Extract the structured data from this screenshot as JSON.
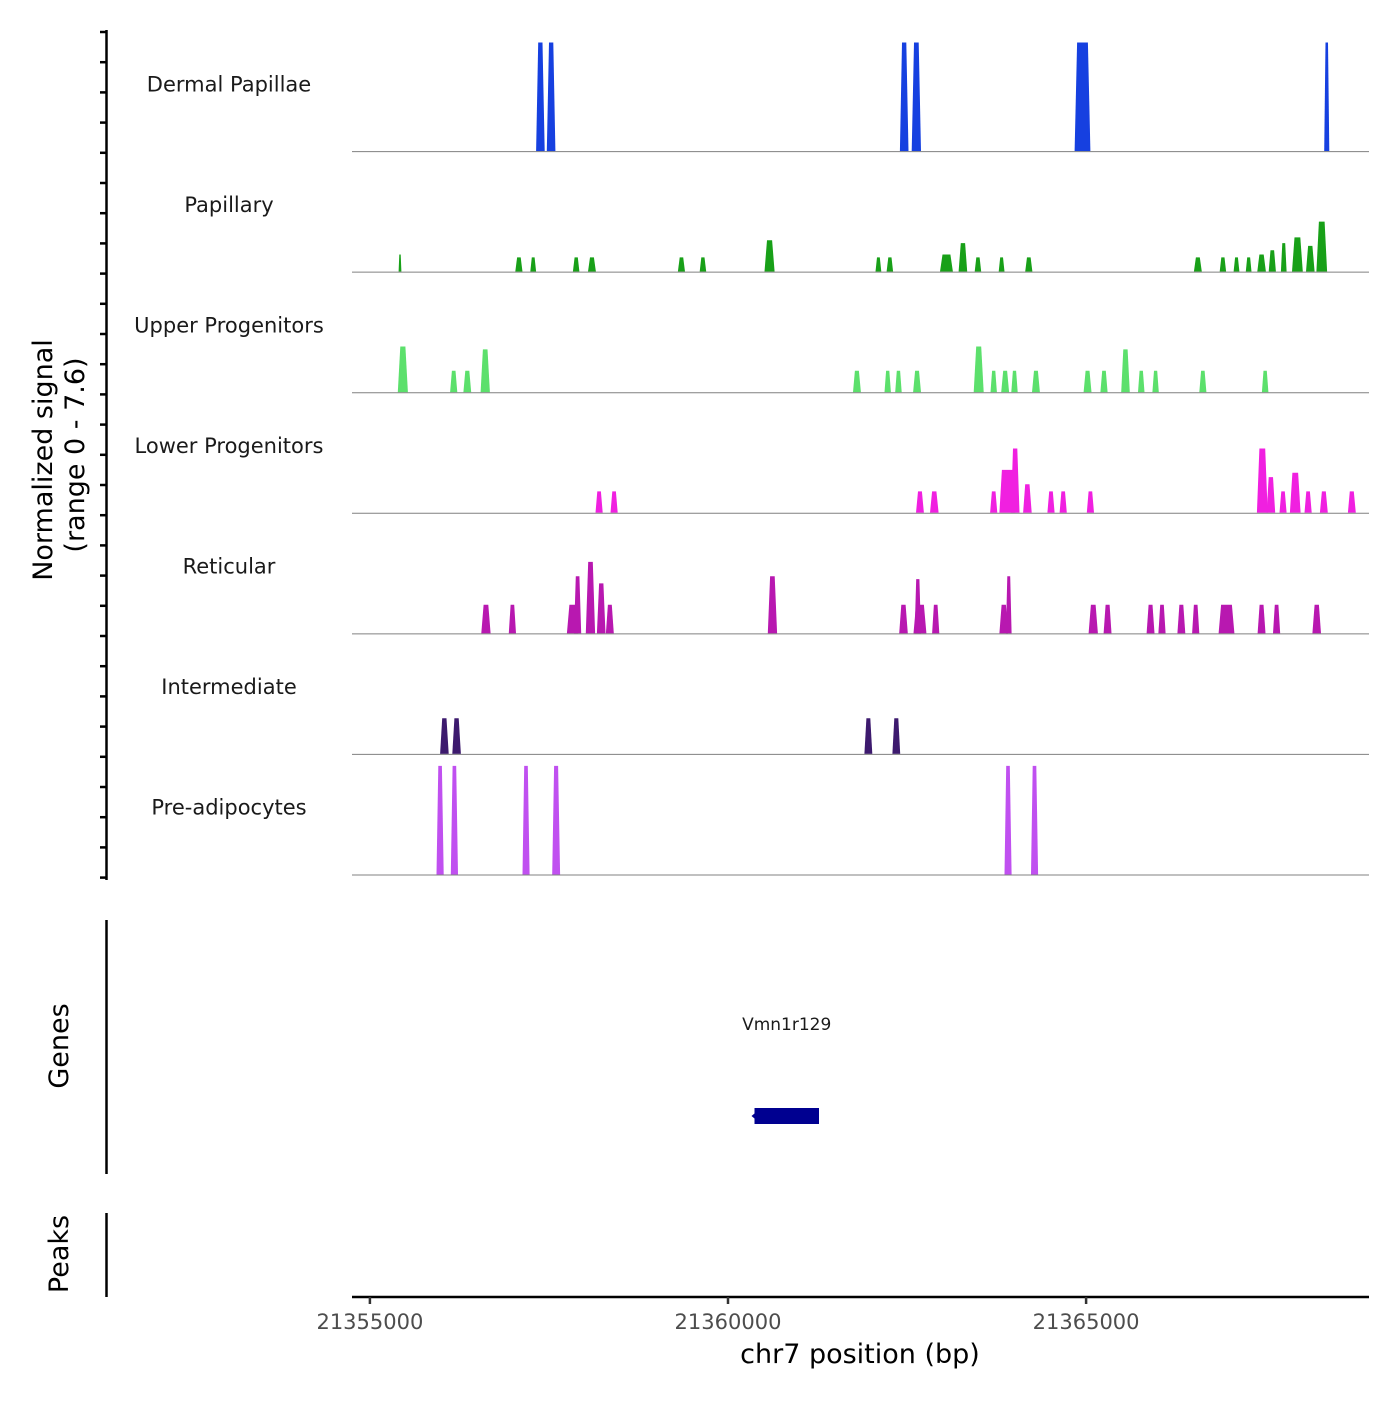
{
  "chart_data": {
    "type": "area",
    "title": "",
    "xlabel": "chr7 position (bp)",
    "ylabel_line1": "Normalized signal",
    "ylabel_line2": "(range 0 - 7.6)",
    "y_range": [
      0,
      7.6
    ],
    "xlim": [
      21354750,
      21368950
    ],
    "x_ticks": [
      {
        "value": 21355000,
        "label": "21355000"
      },
      {
        "value": 21360000,
        "label": "21360000"
      },
      {
        "value": 21365000,
        "label": "21365000"
      }
    ],
    "tracks": [
      {
        "name": "Dermal Papillae",
        "color": "#1640e0",
        "peaks": [
          {
            "x": 21357380,
            "w": 120,
            "h": 7.6
          },
          {
            "x": 21357530,
            "w": 120,
            "h": 7.6
          },
          {
            "x": 21362460,
            "w": 120,
            "h": 7.6
          },
          {
            "x": 21362630,
            "w": 130,
            "h": 7.6
          },
          {
            "x": 21364950,
            "w": 220,
            "h": 7.6
          },
          {
            "x": 21368360,
            "w": 70,
            "h": 7.6
          }
        ]
      },
      {
        "name": "Papillary",
        "color": "#18a018",
        "peaks": [
          {
            "x": 21355420,
            "w": 40,
            "h": 1.2
          },
          {
            "x": 21357080,
            "w": 100,
            "h": 1.0
          },
          {
            "x": 21357280,
            "w": 80,
            "h": 1.0
          },
          {
            "x": 21357880,
            "w": 90,
            "h": 1.0
          },
          {
            "x": 21358100,
            "w": 110,
            "h": 1.0
          },
          {
            "x": 21359350,
            "w": 100,
            "h": 1.0
          },
          {
            "x": 21359650,
            "w": 90,
            "h": 1.0
          },
          {
            "x": 21360580,
            "w": 140,
            "h": 2.2
          },
          {
            "x": 21362100,
            "w": 80,
            "h": 1.0
          },
          {
            "x": 21362260,
            "w": 90,
            "h": 1.0
          },
          {
            "x": 21363050,
            "w": 180,
            "h": 1.2
          },
          {
            "x": 21363280,
            "w": 120,
            "h": 2.0
          },
          {
            "x": 21363490,
            "w": 90,
            "h": 1.0
          },
          {
            "x": 21363820,
            "w": 80,
            "h": 1.0
          },
          {
            "x": 21364200,
            "w": 100,
            "h": 1.0
          },
          {
            "x": 21366560,
            "w": 110,
            "h": 1.0
          },
          {
            "x": 21366910,
            "w": 90,
            "h": 1.0
          },
          {
            "x": 21367100,
            "w": 80,
            "h": 1.0
          },
          {
            "x": 21367270,
            "w": 80,
            "h": 1.0
          },
          {
            "x": 21367450,
            "w": 120,
            "h": 1.2
          },
          {
            "x": 21367600,
            "w": 100,
            "h": 1.5
          },
          {
            "x": 21367760,
            "w": 80,
            "h": 2.0
          },
          {
            "x": 21367950,
            "w": 150,
            "h": 2.4
          },
          {
            "x": 21368130,
            "w": 120,
            "h": 1.8
          },
          {
            "x": 21368290,
            "w": 150,
            "h": 3.5
          }
        ]
      },
      {
        "name": "Upper Progenitors",
        "color": "#5ce06c",
        "peaks": [
          {
            "x": 21355460,
            "w": 140,
            "h": 3.2
          },
          {
            "x": 21356170,
            "w": 100,
            "h": 1.5
          },
          {
            "x": 21356360,
            "w": 110,
            "h": 1.5
          },
          {
            "x": 21356610,
            "w": 130,
            "h": 3.0
          },
          {
            "x": 21361800,
            "w": 110,
            "h": 1.5
          },
          {
            "x": 21362230,
            "w": 90,
            "h": 1.5
          },
          {
            "x": 21362380,
            "w": 90,
            "h": 1.5
          },
          {
            "x": 21362640,
            "w": 110,
            "h": 1.5
          },
          {
            "x": 21363500,
            "w": 140,
            "h": 3.2
          },
          {
            "x": 21363710,
            "w": 90,
            "h": 1.5
          },
          {
            "x": 21363870,
            "w": 110,
            "h": 1.5
          },
          {
            "x": 21364000,
            "w": 90,
            "h": 1.5
          },
          {
            "x": 21364300,
            "w": 110,
            "h": 1.5
          },
          {
            "x": 21365020,
            "w": 110,
            "h": 1.5
          },
          {
            "x": 21365250,
            "w": 100,
            "h": 1.5
          },
          {
            "x": 21365550,
            "w": 120,
            "h": 3.0
          },
          {
            "x": 21365770,
            "w": 90,
            "h": 1.5
          },
          {
            "x": 21365970,
            "w": 90,
            "h": 1.5
          },
          {
            "x": 21366630,
            "w": 100,
            "h": 1.5
          },
          {
            "x": 21367500,
            "w": 90,
            "h": 1.5
          }
        ]
      },
      {
        "name": "Lower Progenitors",
        "color": "#f020e0",
        "peaks": [
          {
            "x": 21358200,
            "w": 100,
            "h": 1.5
          },
          {
            "x": 21358410,
            "w": 100,
            "h": 1.5
          },
          {
            "x": 21362680,
            "w": 110,
            "h": 1.5
          },
          {
            "x": 21362880,
            "w": 120,
            "h": 1.5
          },
          {
            "x": 21363710,
            "w": 100,
            "h": 1.5
          },
          {
            "x": 21363900,
            "w": 220,
            "h": 3.0
          },
          {
            "x": 21364010,
            "w": 120,
            "h": 4.5
          },
          {
            "x": 21364180,
            "w": 120,
            "h": 2.0
          },
          {
            "x": 21364510,
            "w": 100,
            "h": 1.5
          },
          {
            "x": 21364680,
            "w": 100,
            "h": 1.5
          },
          {
            "x": 21365060,
            "w": 100,
            "h": 1.5
          },
          {
            "x": 21367460,
            "w": 150,
            "h": 4.5
          },
          {
            "x": 21367580,
            "w": 120,
            "h": 2.5
          },
          {
            "x": 21367750,
            "w": 100,
            "h": 1.5
          },
          {
            "x": 21367920,
            "w": 150,
            "h": 2.8
          },
          {
            "x": 21368100,
            "w": 100,
            "h": 1.5
          },
          {
            "x": 21368320,
            "w": 110,
            "h": 1.5
          },
          {
            "x": 21368710,
            "w": 110,
            "h": 1.5
          }
        ]
      },
      {
        "name": "Reticular",
        "color": "#b818b0",
        "peaks": [
          {
            "x": 21356620,
            "w": 130,
            "h": 2.0
          },
          {
            "x": 21356990,
            "w": 100,
            "h": 2.0
          },
          {
            "x": 21357830,
            "w": 160,
            "h": 2.0
          },
          {
            "x": 21357900,
            "w": 100,
            "h": 4.0
          },
          {
            "x": 21358080,
            "w": 130,
            "h": 5.0
          },
          {
            "x": 21358230,
            "w": 120,
            "h": 3.5
          },
          {
            "x": 21358350,
            "w": 110,
            "h": 2.0
          },
          {
            "x": 21360620,
            "w": 130,
            "h": 4.0
          },
          {
            "x": 21362450,
            "w": 120,
            "h": 2.0
          },
          {
            "x": 21362680,
            "w": 180,
            "h": 2.0
          },
          {
            "x": 21362650,
            "w": 90,
            "h": 3.8
          },
          {
            "x": 21362900,
            "w": 100,
            "h": 2.0
          },
          {
            "x": 21363850,
            "w": 120,
            "h": 2.0
          },
          {
            "x": 21363920,
            "w": 80,
            "h": 4.0
          },
          {
            "x": 21365100,
            "w": 130,
            "h": 2.0
          },
          {
            "x": 21365300,
            "w": 110,
            "h": 2.0
          },
          {
            "x": 21365900,
            "w": 110,
            "h": 2.0
          },
          {
            "x": 21366060,
            "w": 100,
            "h": 2.0
          },
          {
            "x": 21366330,
            "w": 110,
            "h": 2.0
          },
          {
            "x": 21366530,
            "w": 100,
            "h": 2.0
          },
          {
            "x": 21366960,
            "w": 220,
            "h": 2.0
          },
          {
            "x": 21367450,
            "w": 110,
            "h": 2.0
          },
          {
            "x": 21367660,
            "w": 100,
            "h": 2.0
          },
          {
            "x": 21368220,
            "w": 120,
            "h": 2.0
          }
        ]
      },
      {
        "name": "Intermediate",
        "color": "#3d1a6e",
        "peaks": [
          {
            "x": 21356040,
            "w": 120,
            "h": 2.5
          },
          {
            "x": 21356210,
            "w": 120,
            "h": 2.5
          },
          {
            "x": 21361960,
            "w": 110,
            "h": 2.5
          },
          {
            "x": 21362350,
            "w": 110,
            "h": 2.5
          }
        ]
      },
      {
        "name": "Pre-adipocytes",
        "color": "#c050f0",
        "peaks": [
          {
            "x": 21355980,
            "w": 100,
            "h": 7.6
          },
          {
            "x": 21356180,
            "w": 100,
            "h": 7.6
          },
          {
            "x": 21357180,
            "w": 100,
            "h": 7.6
          },
          {
            "x": 21357600,
            "w": 110,
            "h": 7.6
          },
          {
            "x": 21363910,
            "w": 100,
            "h": 7.6
          },
          {
            "x": 21364280,
            "w": 100,
            "h": 7.6
          }
        ]
      }
    ],
    "genes_track": {
      "label": "Genes",
      "genes": [
        {
          "name": "Vmn1r129",
          "start": 21360370,
          "end": 21361270,
          "strand": "-",
          "color": "#000090"
        }
      ]
    },
    "peaks_track": {
      "label": "Peaks",
      "regions": []
    }
  }
}
